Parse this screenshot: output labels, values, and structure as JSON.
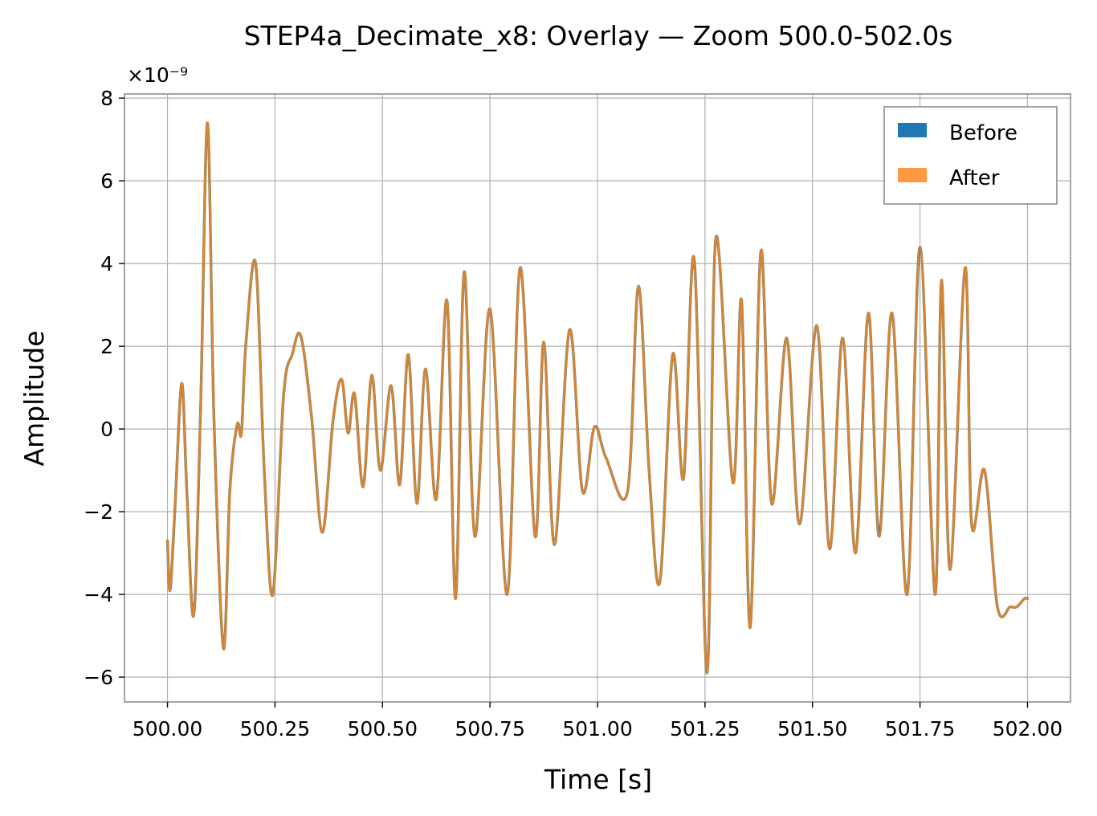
{
  "chart_data": {
    "type": "line",
    "title": "STEP4a_Decimate_x8: Overlay — Zoom 500.0-502.0s",
    "xlabel": "Time [s]",
    "ylabel": "Amplitude",
    "y_offset_label": "×10⁻⁹",
    "xlim": [
      499.9,
      502.1
    ],
    "ylim": [
      -6.6,
      8.1
    ],
    "x_ticks": [
      500.0,
      500.25,
      500.5,
      500.75,
      501.0,
      501.25,
      501.5,
      501.75,
      502.0
    ],
    "x_tick_labels": [
      "500.00",
      "500.25",
      "500.50",
      "500.75",
      "501.00",
      "501.25",
      "501.50",
      "501.75",
      "502.00"
    ],
    "y_ticks": [
      -6,
      -4,
      -2,
      0,
      2,
      4,
      6,
      8
    ],
    "y_tick_labels": [
      "−6",
      "−4",
      "−2",
      "0",
      "2",
      "4",
      "6",
      "8"
    ],
    "grid": true,
    "legend_position": "top-right",
    "series": [
      {
        "name": "Before",
        "color": "#1f77b4",
        "legend_color": "#1f77b4"
      },
      {
        "name": "After",
        "color": "#d68533",
        "legend_color": "#ff9a40"
      }
    ],
    "x": [
      500.0,
      500.006,
      500.017,
      500.033,
      500.045,
      500.061,
      500.077,
      500.093,
      500.108,
      500.13,
      500.145,
      500.162,
      500.172,
      500.182,
      500.205,
      500.225,
      500.245,
      500.27,
      500.29,
      500.31,
      500.335,
      500.36,
      500.385,
      500.405,
      500.42,
      500.435,
      500.455,
      500.475,
      500.495,
      500.52,
      500.54,
      500.56,
      500.58,
      500.6,
      500.625,
      500.65,
      500.67,
      500.69,
      500.715,
      500.75,
      500.79,
      500.82,
      500.855,
      500.875,
      500.9,
      500.935,
      500.965,
      500.993,
      501.02,
      501.07,
      501.095,
      501.12,
      501.145,
      501.175,
      501.2,
      501.225,
      501.255,
      501.275,
      501.315,
      501.335,
      501.355,
      501.38,
      501.405,
      501.44,
      501.47,
      501.51,
      501.54,
      501.57,
      501.6,
      501.63,
      501.655,
      501.685,
      501.72,
      501.75,
      501.785,
      501.8,
      501.82,
      501.855,
      501.87,
      501.9,
      501.93,
      501.96,
      501.975,
      501.993,
      502.0
    ],
    "y": [
      -2.7,
      -3.9,
      -2.0,
      1.1,
      -1.5,
      -4.5,
      0.5,
      7.4,
      0.3,
      -5.3,
      -1.5,
      0.1,
      -0.1,
      2.0,
      4.0,
      -1.0,
      -4.0,
      0.8,
      1.8,
      2.25,
      0.3,
      -2.5,
      0.2,
      1.2,
      -0.1,
      0.85,
      -1.4,
      1.3,
      -1.0,
      1.05,
      -1.35,
      1.8,
      -1.8,
      1.45,
      -1.7,
      3.1,
      -4.1,
      3.8,
      -2.6,
      2.9,
      -4.0,
      3.9,
      -2.6,
      2.1,
      -2.8,
      2.4,
      -1.5,
      0.05,
      -0.7,
      -1.5,
      3.45,
      -1.0,
      -3.7,
      1.8,
      -1.2,
      4.1,
      -5.9,
      4.6,
      -1.3,
      3.1,
      -4.8,
      4.3,
      -1.8,
      2.2,
      -2.3,
      2.5,
      -2.9,
      2.2,
      -3.0,
      2.8,
      -2.6,
      2.8,
      -4.0,
      4.4,
      -4.0,
      3.6,
      -3.4,
      3.9,
      -2.3,
      -1.0,
      -4.3,
      -4.3,
      -4.3,
      -4.1,
      -4.1
    ]
  }
}
